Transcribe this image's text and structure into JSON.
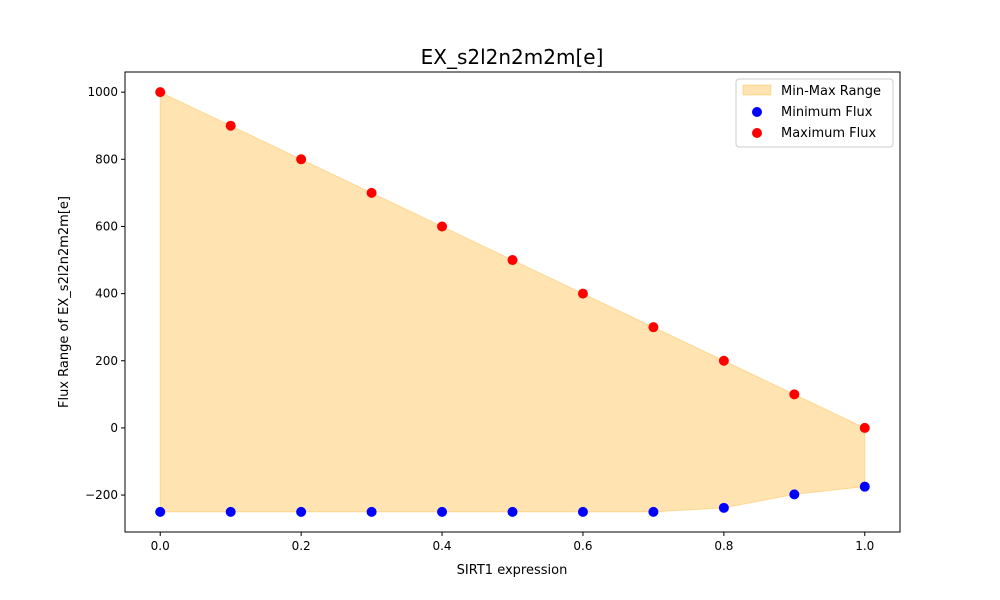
{
  "chart_data": {
    "type": "scatter",
    "title": "EX_s2l2n2m2m[e]",
    "xlabel": "SIRT1 expression",
    "ylabel": "Flux Range of EX_s2l2n2m2m[e]",
    "xlim": [
      -0.05,
      1.05
    ],
    "ylim": [
      -310,
      1060
    ],
    "xticks": [
      0.0,
      0.2,
      0.4,
      0.6,
      0.8,
      1.0
    ],
    "xtick_labels": [
      "0.0",
      "0.2",
      "0.4",
      "0.6",
      "0.8",
      "1.0"
    ],
    "yticks": [
      -200,
      0,
      200,
      400,
      600,
      800,
      1000
    ],
    "ytick_labels": [
      "−200",
      "0",
      "200",
      "400",
      "600",
      "800",
      "1000"
    ],
    "grid": false,
    "legend_position": "top-right",
    "x": [
      0.0,
      0.1,
      0.2,
      0.3,
      0.4,
      0.5,
      0.6,
      0.7,
      0.8,
      0.9,
      1.0
    ],
    "fill": {
      "name": "Min-Max Range",
      "color": "#ffa500",
      "opacity": 0.3
    },
    "series": [
      {
        "name": "Minimum Flux",
        "color": "#0000ff",
        "values": [
          -250,
          -250,
          -250,
          -250,
          -250,
          -250,
          -250,
          -250,
          -238,
          -198,
          -175
        ]
      },
      {
        "name": "Maximum Flux",
        "color": "#ff0000",
        "values": [
          1000,
          900,
          800,
          700,
          600,
          500,
          400,
          300,
          200,
          100,
          0
        ]
      }
    ]
  }
}
